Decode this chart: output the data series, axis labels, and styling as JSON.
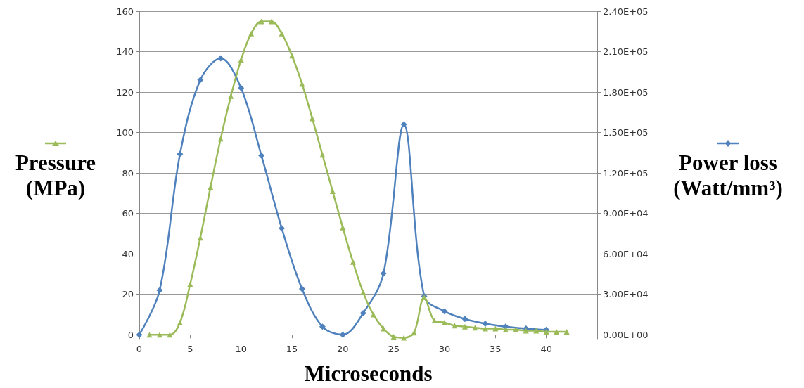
{
  "chart_data": {
    "type": "line",
    "xlabel": "Microseconds",
    "ylabel": "Pressure (MPa)",
    "y2label": "Power loss (Watt/mm³)",
    "xlim": [
      0,
      45
    ],
    "xticks": [
      0,
      5,
      10,
      15,
      20,
      25,
      30,
      35,
      40
    ],
    "ylim": [
      -2,
      160
    ],
    "yticks": [
      0,
      20,
      40,
      60,
      80,
      100,
      120,
      140,
      160
    ],
    "y2lim": [
      -3000,
      240000
    ],
    "y2ticks": [
      {
        "value": 0,
        "label": "0.00E+00"
      },
      {
        "value": 30000,
        "label": "3.00E+04"
      },
      {
        "value": 60000,
        "label": "6.00E+04"
      },
      {
        "value": 90000,
        "label": "9.00E+04"
      },
      {
        "value": 120000,
        "label": "1.20E+05"
      },
      {
        "value": 150000,
        "label": "1.50E+05"
      },
      {
        "value": 180000,
        "label": "1.80E+05"
      },
      {
        "value": 210000,
        "label": "2.10E+05"
      },
      {
        "value": 240000,
        "label": "2.40E+05"
      }
    ],
    "grid": "y",
    "line_style": "solid",
    "series": [
      {
        "color": "#9bbb59",
        "marker": "triangle",
        "x": [
          1,
          2,
          3,
          4,
          5,
          6,
          7,
          8,
          9,
          10,
          11,
          12,
          13,
          14,
          15,
          16,
          17,
          18,
          19,
          20,
          21,
          22,
          23,
          24,
          25,
          26,
          27,
          28,
          29,
          30,
          31,
          32,
          33,
          34,
          35,
          36,
          37,
          38,
          39,
          40,
          41,
          42
        ],
        "values": [
          0,
          0,
          0,
          6,
          25,
          48,
          73,
          97,
          118,
          136,
          149,
          155,
          155,
          149,
          138,
          124,
          107,
          89,
          71,
          53,
          36,
          21,
          10,
          3,
          -1,
          -1.5,
          1,
          18.5,
          7,
          6,
          4.5,
          4,
          3.5,
          3,
          3,
          2.5,
          2.5,
          2,
          2,
          1.5,
          1.5,
          1.5
        ]
      },
      {
        "color": "#4f81bd",
        "marker": "diamond",
        "axis": "y2",
        "x": [
          0,
          2,
          4,
          6,
          8,
          10,
          12,
          14,
          16,
          18,
          20,
          22,
          24,
          26,
          28,
          30,
          32,
          34,
          36,
          38,
          40
        ],
        "values": [
          0,
          33000,
          134000,
          189000,
          205000,
          183000,
          133000,
          79000,
          34000,
          6000,
          0,
          16000,
          45500,
          156000,
          28500,
          17400,
          11700,
          8200,
          6000,
          4600,
          3600
        ]
      }
    ]
  }
}
